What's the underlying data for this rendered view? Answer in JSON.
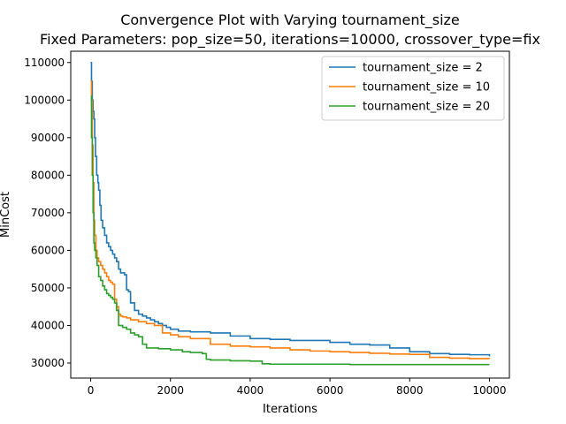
{
  "chart_data": {
    "type": "line",
    "title": "Convergence Plot with Varying tournament_size",
    "subtitle": "Fixed Parameters: pop_size=50, iterations=10000, crossover_type=fix",
    "xlabel": "Iterations",
    "ylabel": "MinCost",
    "xlim": [
      -500,
      10500
    ],
    "ylim": [
      26000,
      113000
    ],
    "xticks": [
      0,
      2000,
      4000,
      6000,
      8000,
      10000
    ],
    "xtick_labels": [
      "0",
      "2000",
      "4000",
      "6000",
      "8000",
      "10000"
    ],
    "yticks": [
      30000,
      40000,
      50000,
      60000,
      70000,
      80000,
      90000,
      100000,
      110000
    ],
    "ytick_labels": [
      "30000",
      "40000",
      "50000",
      "60000",
      "70000",
      "80000",
      "90000",
      "100000",
      "110000"
    ],
    "grid": false,
    "legend_position": "top-right",
    "series": [
      {
        "name": "tournament_size = 2",
        "color": "#1f77b4",
        "x": [
          0,
          20,
          40,
          60,
          80,
          100,
          120,
          150,
          180,
          200,
          230,
          260,
          300,
          350,
          400,
          450,
          500,
          550,
          600,
          650,
          700,
          750,
          800,
          850,
          900,
          950,
          1000,
          1100,
          1200,
          1300,
          1400,
          1500,
          1600,
          1700,
          1800,
          1900,
          2000,
          2200,
          2500,
          3000,
          3500,
          4000,
          4500,
          5000,
          5500,
          6000,
          6500,
          7000,
          7500,
          8000,
          8500,
          9000,
          9500,
          10000
        ],
        "y": [
          110000,
          105000,
          100000,
          97000,
          95000,
          90000,
          85000,
          80000,
          78000,
          76000,
          72000,
          68000,
          66000,
          64000,
          62000,
          61000,
          60000,
          59000,
          58000,
          57000,
          55000,
          54000,
          54000,
          53500,
          49500,
          49000,
          46000,
          44000,
          43000,
          42500,
          42000,
          41500,
          41000,
          40500,
          40000,
          39500,
          39000,
          38500,
          38300,
          38000,
          37200,
          36500,
          36300,
          36000,
          36000,
          35500,
          35000,
          34800,
          34000,
          33000,
          32500,
          32300,
          32200,
          31800
        ]
      },
      {
        "name": "tournament_size = 10",
        "color": "#ff7f0e",
        "x": [
          0,
          20,
          40,
          60,
          80,
          100,
          130,
          160,
          200,
          250,
          300,
          350,
          400,
          450,
          500,
          550,
          600,
          650,
          700,
          750,
          800,
          900,
          1000,
          1200,
          1400,
          1600,
          1800,
          2000,
          2200,
          2500,
          3000,
          3500,
          4000,
          4500,
          5000,
          5500,
          6000,
          6500,
          7000,
          7500,
          8000,
          8500,
          9000,
          9500,
          10000
        ],
        "y": [
          105000,
          100000,
          88000,
          78000,
          68000,
          64000,
          60000,
          58000,
          57000,
          56000,
          55000,
          54000,
          53000,
          52000,
          51500,
          51000,
          47000,
          45000,
          43000,
          42500,
          42300,
          42000,
          41500,
          41000,
          40500,
          40000,
          38000,
          37500,
          37000,
          36500,
          35000,
          34500,
          34300,
          34000,
          33500,
          33200,
          33000,
          32800,
          32600,
          32400,
          32300,
          31500,
          31300,
          31200,
          31100
        ]
      },
      {
        "name": "tournament_size = 20",
        "color": "#2ca02c",
        "x": [
          0,
          20,
          40,
          60,
          80,
          100,
          130,
          160,
          200,
          250,
          300,
          350,
          400,
          450,
          500,
          550,
          600,
          650,
          700,
          800,
          900,
          1000,
          1100,
          1200,
          1300,
          1400,
          1500,
          1700,
          2000,
          2300,
          2500,
          2800,
          2900,
          3000,
          3500,
          4000,
          4300,
          4500,
          5000,
          5500,
          6000,
          6500,
          7000,
          8000,
          9000,
          10000
        ],
        "y": [
          101000,
          90000,
          80000,
          70000,
          62000,
          60000,
          58000,
          56000,
          53000,
          52000,
          50500,
          49500,
          48500,
          48000,
          47500,
          47000,
          46000,
          44000,
          40000,
          39500,
          39000,
          38000,
          37500,
          37000,
          35000,
          34000,
          34000,
          33800,
          33500,
          33000,
          32800,
          32500,
          31000,
          30800,
          30600,
          30500,
          29800,
          29700,
          29700,
          29700,
          29700,
          29600,
          29600,
          29600,
          29600,
          29600
        ]
      }
    ]
  }
}
